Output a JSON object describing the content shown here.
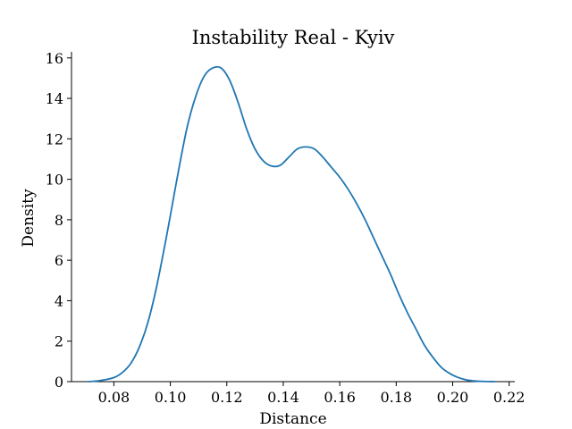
{
  "chart_data": {
    "type": "line",
    "title": "Instability Real - Kyiv",
    "xlabel": "Distance",
    "ylabel": "Density",
    "xlim": [
      0.065,
      0.222
    ],
    "ylim": [
      0,
      16.3
    ],
    "xticks": [
      "0.08",
      "0.10",
      "0.12",
      "0.14",
      "0.16",
      "0.18",
      "0.20",
      "0.22"
    ],
    "yticks": [
      "0",
      "2",
      "4",
      "6",
      "8",
      "10",
      "12",
      "14",
      "16"
    ],
    "grid": false,
    "series": [
      {
        "color": "#1f77b4",
        "x": [
          0.071,
          0.075,
          0.08,
          0.083,
          0.086,
          0.089,
          0.092,
          0.095,
          0.098,
          0.1,
          0.103,
          0.106,
          0.109,
          0.112,
          0.115,
          0.118,
          0.121,
          0.124,
          0.127,
          0.13,
          0.133,
          0.136,
          0.139,
          0.142,
          0.145,
          0.148,
          0.151,
          0.154,
          0.157,
          0.16,
          0.163,
          0.166,
          0.169,
          0.172,
          0.175,
          0.178,
          0.181,
          0.184,
          0.187,
          0.19,
          0.193,
          0.196,
          0.199,
          0.202,
          0.205,
          0.208,
          0.211,
          0.215
        ],
        "y": [
          0.0,
          0.05,
          0.2,
          0.45,
          0.9,
          1.7,
          2.9,
          4.6,
          6.7,
          8.2,
          10.5,
          12.6,
          14.1,
          15.1,
          15.5,
          15.5,
          14.9,
          13.8,
          12.5,
          11.5,
          10.9,
          10.65,
          10.7,
          11.1,
          11.5,
          11.6,
          11.5,
          11.1,
          10.6,
          10.1,
          9.5,
          8.8,
          8.0,
          7.1,
          6.2,
          5.3,
          4.3,
          3.4,
          2.6,
          1.8,
          1.2,
          0.7,
          0.4,
          0.2,
          0.08,
          0.03,
          0.01,
          0.0
        ]
      }
    ]
  }
}
